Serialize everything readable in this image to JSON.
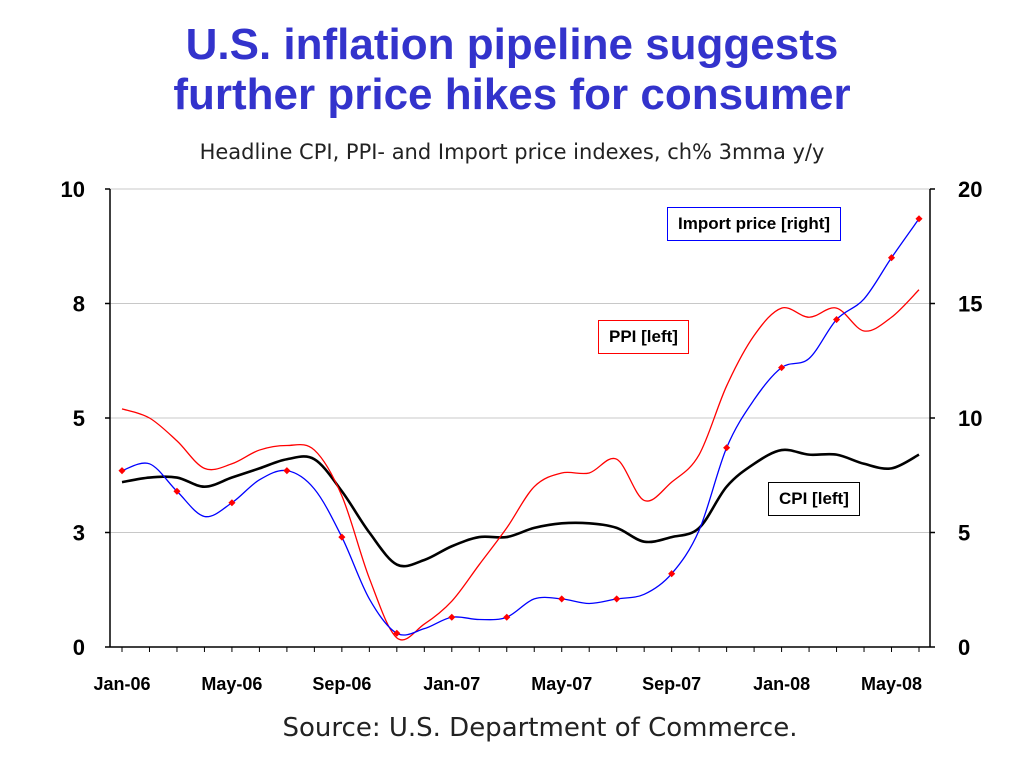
{
  "title_line1": "U.S. inflation pipeline suggests",
  "title_line2": "further price hikes for consumer",
  "subtitle": "Headline CPI, PPI- and Import price indexes, ch% 3mma y/y",
  "source": "Source: U.S. Department of Commerce.",
  "colors": {
    "title": "#3333cc",
    "cpi": "#000000",
    "ppi": "#ff0000",
    "import_line": "#0000ff",
    "import_marker": "#ff0000"
  },
  "chart_data": {
    "type": "line",
    "x_labels": [
      "Jan-06",
      "May-06",
      "Sep-06",
      "Jan-07",
      "May-07",
      "Sep-07",
      "Jan-08",
      "May-08"
    ],
    "left_axis": {
      "ticks": [
        "0",
        "3",
        "5",
        "8",
        "10"
      ],
      "ylim": [
        0,
        10
      ]
    },
    "right_axis": {
      "ticks": [
        "0",
        "5",
        "10",
        "15",
        "20"
      ],
      "ylim": [
        0,
        20
      ]
    },
    "grid": true,
    "x": [
      "Jan-06",
      "Feb-06",
      "Mar-06",
      "Apr-06",
      "May-06",
      "Jun-06",
      "Jul-06",
      "Aug-06",
      "Sep-06",
      "Oct-06",
      "Nov-06",
      "Dec-06",
      "Jan-07",
      "Feb-07",
      "Mar-07",
      "Apr-07",
      "May-07",
      "Jun-07",
      "Jul-07",
      "Aug-07",
      "Sep-07",
      "Oct-07",
      "Nov-07",
      "Dec-07",
      "Jan-08",
      "Feb-08",
      "Mar-08",
      "Apr-08",
      "May-08",
      "Jun-08"
    ],
    "series": [
      {
        "name": "CPI [left]",
        "axis": "left",
        "values": [
          3.6,
          3.7,
          3.7,
          3.5,
          3.7,
          3.9,
          4.1,
          4.1,
          3.4,
          2.5,
          1.8,
          1.9,
          2.2,
          2.4,
          2.4,
          2.6,
          2.7,
          2.7,
          2.6,
          2.3,
          2.4,
          2.6,
          3.5,
          4.0,
          4.3,
          4.2,
          4.2,
          4.0,
          3.9,
          4.2
        ]
      },
      {
        "name": "PPI [left]",
        "axis": "left",
        "values": [
          5.2,
          5.0,
          4.5,
          3.9,
          4.0,
          4.3,
          4.4,
          4.3,
          3.3,
          1.5,
          0.2,
          0.5,
          1.0,
          1.8,
          2.6,
          3.5,
          3.8,
          3.8,
          4.1,
          3.2,
          3.6,
          4.2,
          5.7,
          6.8,
          7.4,
          7.2,
          7.4,
          6.9,
          7.2,
          7.8
        ]
      },
      {
        "name": "Import price [right]",
        "axis": "right",
        "values": [
          7.7,
          8.0,
          6.8,
          5.7,
          6.3,
          7.3,
          7.7,
          6.9,
          4.8,
          2.1,
          0.6,
          0.8,
          1.3,
          1.2,
          1.3,
          2.1,
          2.1,
          1.9,
          2.1,
          2.3,
          3.2,
          5.1,
          8.7,
          10.8,
          12.2,
          12.6,
          14.3,
          15.2,
          17.0,
          18.7
        ]
      }
    ]
  }
}
